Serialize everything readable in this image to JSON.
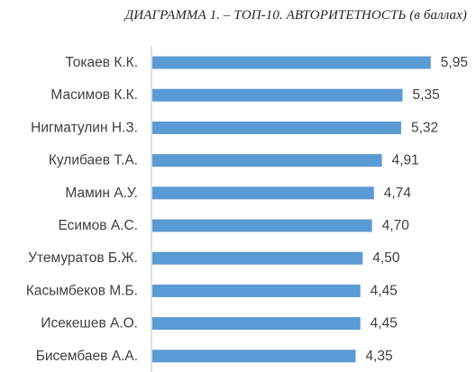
{
  "chart_data": {
    "type": "bar",
    "orientation": "horizontal",
    "title": "ДИАГРАММА 1. – ТОП-10. АВТОРИТЕТНОСТЬ (в баллах)",
    "categories": [
      "Токаев К.К.",
      "Масимов К.К.",
      "Нигматулин Н.З.",
      "Кулибаев Т.А.",
      "Мамин А.У.",
      "Есимов А.С.",
      "Утемуратов Б.Ж.",
      "Касымбеков М.Б.",
      "Исекешев А.О.",
      "Бисембаев А.А."
    ],
    "values": [
      5.95,
      5.35,
      5.32,
      4.91,
      4.74,
      4.7,
      4.5,
      4.45,
      4.45,
      4.35
    ],
    "value_labels": [
      "5,95",
      "5,35",
      "5,32",
      "4,91",
      "4,74",
      "4,70",
      "4,50",
      "4,45",
      "4,45",
      "4,35"
    ],
    "xlim": [
      0,
      6.3
    ],
    "bar_color": "#5b9bd5",
    "grid": false,
    "legend": "none"
  }
}
